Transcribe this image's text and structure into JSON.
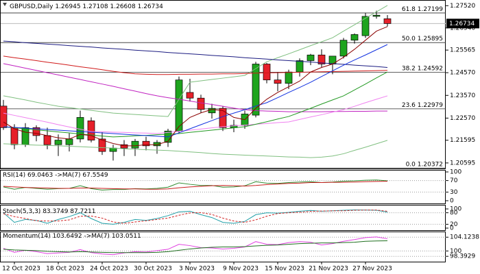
{
  "chart_data": [
    {
      "type": "candlestick",
      "title": "GBPUSD,Daily",
      "up_color": "#1ea41e",
      "down_color": "#e6202a",
      "categories": [
        null,
        "12 Oct 2023",
        null,
        null,
        null,
        "18 Oct 2023",
        null,
        null,
        null,
        "24 Oct 2023",
        null,
        null,
        null,
        "30 Oct 2023",
        null,
        null,
        null,
        "3 Nov 2023",
        null,
        null,
        null,
        "9 Nov 2023",
        null,
        null,
        null,
        "15 Nov 2023",
        null,
        null,
        null,
        "21 Nov 2023",
        null,
        null,
        null,
        "27 Nov 2023",
        null,
        null
      ],
      "open": [
        1.231,
        1.2215,
        1.214,
        1.2215,
        1.218,
        1.214,
        1.214,
        1.2165,
        1.2245,
        1.2165,
        1.211,
        1.214,
        1.2125,
        1.2155,
        1.2135,
        1.215,
        1.22,
        1.237,
        1.2345,
        1.228,
        1.23,
        1.2215,
        1.2225,
        1.227,
        1.2495,
        1.2425,
        1.241,
        1.246,
        1.251,
        1.2535,
        1.2495,
        1.253,
        1.26,
        1.262,
        1.2705,
        1.26945
      ],
      "high": [
        1.2337,
        1.223,
        1.2235,
        1.2225,
        1.2215,
        1.2185,
        1.219,
        1.229,
        1.226,
        1.2195,
        1.214,
        1.216,
        1.2165,
        1.2175,
        1.216,
        1.221,
        1.244,
        1.243,
        1.236,
        1.232,
        1.231,
        1.225,
        1.229,
        1.2505,
        1.25,
        1.246,
        1.247,
        1.252,
        1.254,
        1.256,
        1.253,
        1.261,
        1.263,
        1.272,
        1.273,
        1.27108
      ],
      "low": [
        1.2205,
        1.212,
        1.213,
        1.2155,
        1.212,
        1.209,
        1.211,
        1.215,
        1.215,
        1.2095,
        1.207,
        1.209,
        1.209,
        1.2115,
        1.21,
        1.213,
        1.219,
        1.233,
        1.228,
        1.2255,
        1.22,
        1.2195,
        1.221,
        1.226,
        1.241,
        1.2375,
        1.2385,
        1.244,
        1.249,
        1.248,
        1.245,
        1.252,
        1.2585,
        1.261,
        1.2695,
        1.26608
      ],
      "close": [
        1.2215,
        1.214,
        1.2215,
        1.218,
        1.214,
        1.216,
        1.2165,
        1.226,
        1.216,
        1.211,
        1.2125,
        1.2125,
        1.2155,
        1.2135,
        1.215,
        1.22,
        1.2425,
        1.2345,
        1.2295,
        1.23,
        1.2215,
        1.2225,
        1.2275,
        1.2495,
        1.2425,
        1.241,
        1.246,
        1.251,
        1.2535,
        1.2495,
        1.253,
        1.26,
        1.2625,
        1.2705,
        1.271,
        1.26734
      ],
      "ylim": [
        1.2035,
        1.2768
      ],
      "yticks": [
        {
          "value": 1.2752,
          "label": "1.27520"
        },
        {
          "value": 1.2654,
          "label": "1.26540"
        },
        {
          "value": 1.25565,
          "label": "1.25565"
        },
        {
          "value": 1.2457,
          "label": "1.24570"
        },
        {
          "value": 1.2357,
          "label": "1.23570"
        },
        {
          "value": 1.2257,
          "label": "1.22570"
        },
        {
          "value": 1.21595,
          "label": "1.21595"
        },
        {
          "value": 1.20595,
          "label": "1.20595"
        }
      ],
      "fib": [
        {
          "level": "61.8",
          "value": 1.27199
        },
        {
          "level": "50.0",
          "value": 1.25895
        },
        {
          "level": "38.2",
          "value": 1.24592
        },
        {
          "level": "23.6",
          "value": 1.22979
        },
        {
          "level": "0.0",
          "value": 1.20372
        }
      ],
      "series": [
        {
          "color": "#7fbf7f",
          "values": [
            1.2355,
            1.2346,
            1.2337,
            1.2327,
            1.2318,
            1.2309,
            1.2303,
            1.2297,
            1.2291,
            1.2285,
            1.2279,
            1.2276,
            1.2273,
            1.227,
            1.2267,
            1.2264,
            1.234,
            1.2415,
            1.2421,
            1.2427,
            1.2433,
            1.2439,
            1.2445,
            1.2475,
            1.2505,
            1.2523,
            1.254,
            1.2558,
            1.2576,
            1.2593,
            1.2611,
            1.264,
            1.2668,
            1.2697,
            1.2725,
            1.2753
          ]
        },
        {
          "color": "#7fbf7f",
          "values": [
            1.2144,
            1.2142,
            1.214,
            1.2138,
            1.2137,
            1.2135,
            1.2133,
            1.2131,
            1.2129,
            1.2127,
            1.2125,
            1.2122,
            1.212,
            1.2118,
            1.2116,
            1.2114,
            1.2111,
            1.2108,
            1.2105,
            1.2101,
            1.2098,
            1.2096,
            1.2094,
            1.2092,
            1.209,
            1.2088,
            1.2086,
            1.2085,
            1.2083,
            1.2085,
            1.209,
            1.21,
            1.2115,
            1.2129,
            1.2144,
            1.2159
          ]
        },
        {
          "color": "#1a1a80",
          "values": [
            1.2596,
            1.2593,
            1.2589,
            1.2586,
            1.2583,
            1.258,
            1.2576,
            1.2573,
            1.257,
            1.2566,
            1.2563,
            1.256,
            1.2556,
            1.2553,
            1.255,
            1.2546,
            1.2543,
            1.254,
            1.2537,
            1.2533,
            1.253,
            1.2527,
            1.2523,
            1.252,
            1.2517,
            1.2513,
            1.251,
            1.2507,
            1.2504,
            1.25,
            1.2497,
            1.2494,
            1.249,
            1.2487,
            1.2484,
            1.248
          ]
        },
        {
          "color": "#d01818",
          "values": [
            1.253,
            1.2523,
            1.2517,
            1.251,
            1.2503,
            1.2497,
            1.249,
            1.2483,
            1.2477,
            1.247,
            1.2463,
            1.2457,
            1.2452,
            1.245,
            1.2449,
            1.2449,
            1.245,
            1.245,
            1.2451,
            1.2451,
            1.2452,
            1.2452,
            1.2453,
            1.2455,
            1.2456,
            1.2457,
            1.2458,
            1.2459,
            1.246,
            1.2461,
            1.2462,
            1.2463,
            1.2464,
            1.2465,
            1.2466,
            1.2467
          ]
        },
        {
          "color": "#c020c0",
          "values": [
            1.2497,
            1.2487,
            1.2477,
            1.2467,
            1.2457,
            1.2447,
            1.2437,
            1.2427,
            1.2417,
            1.2407,
            1.2397,
            1.2386,
            1.2376,
            1.2365,
            1.2355,
            1.2347,
            1.234,
            1.2332,
            1.2324,
            1.2317,
            1.2309,
            1.2301,
            1.2294,
            1.229,
            1.2288,
            1.2287,
            1.2285,
            1.2285,
            1.2285,
            1.2285,
            1.2286,
            1.2286,
            1.2287,
            1.2287,
            1.2288,
            1.2288
          ]
        },
        {
          "color": "#f080f0",
          "values": [
            1.2279,
            1.2269,
            1.2259,
            1.2249,
            1.2239,
            1.2228,
            1.2218,
            1.2208,
            1.2198,
            1.2197,
            1.2195,
            1.2194,
            1.2192,
            1.2191,
            1.2189,
            1.2194,
            1.2199,
            1.2204,
            1.2209,
            1.2214,
            1.2219,
            1.2223,
            1.2226,
            1.223,
            1.2233,
            1.2237,
            1.224,
            1.2251,
            1.2262,
            1.2272,
            1.2283,
            1.2294,
            1.2309,
            1.2325,
            1.234,
            1.2355
          ]
        },
        {
          "color": "#229922",
          "values": [
            1.2219,
            1.2214,
            1.221,
            1.2205,
            1.2201,
            1.2196,
            1.2192,
            1.2187,
            1.2183,
            1.2178,
            1.2174,
            1.2176,
            1.2179,
            1.2181,
            1.2184,
            1.2186,
            1.2189,
            1.2194,
            1.2199,
            1.2204,
            1.2209,
            1.2214,
            1.2219,
            1.223,
            1.2241,
            1.2253,
            1.2264,
            1.2282,
            1.23,
            1.2319,
            1.2337,
            1.2355,
            1.2381,
            1.2407,
            1.2434,
            1.246
          ]
        },
        {
          "color": "#1030e0",
          "values": [
            1.2219,
            1.2216,
            1.2213,
            1.221,
            1.2207,
            1.2204,
            1.2201,
            1.2198,
            1.2195,
            1.2192,
            1.2189,
            1.2186,
            1.2183,
            1.218,
            1.2177,
            1.2174,
            1.2192,
            1.221,
            1.2228,
            1.2246,
            1.2264,
            1.2279,
            1.2294,
            1.231,
            1.2325,
            1.2347,
            1.237,
            1.2392,
            1.2415,
            1.244,
            1.2465,
            1.249,
            1.2513,
            1.2535,
            1.2558,
            1.2581
          ]
        },
        {
          "color": "#8b0000",
          "values": [
            1.224,
            1.221,
            1.2195,
            1.219,
            1.218,
            1.217,
            1.2165,
            1.2185,
            1.218,
            1.216,
            1.2145,
            1.2135,
            1.2135,
            1.214,
            1.214,
            1.2155,
            1.222,
            1.226,
            1.228,
            1.2295,
            1.229,
            1.226,
            1.225,
            1.23,
            1.234,
            1.237,
            1.2395,
            1.242,
            1.246,
            1.248,
            1.2495,
            1.2525,
            1.256,
            1.26,
            1.264,
            1.266
          ]
        }
      ]
    },
    {
      "type": "line",
      "title": "RSI(14)",
      "ma_label": "->MA(7)",
      "ylim": [
        0,
        100
      ],
      "yticks": [
        100,
        70,
        30,
        0
      ],
      "series": [
        {
          "color": "#2e8b2e",
          "values": [
            48,
            40,
            46,
            43,
            40,
            42,
            43,
            52,
            42,
            37,
            39,
            39,
            42,
            41,
            43,
            47,
            62,
            57,
            53,
            53,
            47,
            48,
            52,
            66,
            61,
            60,
            63,
            65,
            66,
            63,
            65,
            68,
            69,
            71,
            72,
            69.0463
          ]
        },
        {
          "color": "#c81e1e",
          "values": [
            50,
            48,
            46,
            45,
            44,
            43,
            43,
            44,
            44,
            43,
            42,
            41,
            41,
            40,
            40,
            41,
            45,
            48,
            50,
            52,
            53,
            52,
            51,
            53,
            56,
            58,
            60,
            61,
            63,
            63,
            64,
            64,
            65,
            66,
            67,
            67.5549
          ]
        }
      ]
    },
    {
      "type": "line",
      "title": "Stoch(5,3,3)",
      "ylim": [
        0,
        100
      ],
      "yticks": [
        100,
        80,
        20,
        0
      ],
      "series": [
        {
          "color": "#20a0a8",
          "values": [
            80,
            30,
            45,
            40,
            25,
            45,
            60,
            80,
            50,
            25,
            20,
            30,
            45,
            40,
            50,
            65,
            85,
            88,
            70,
            55,
            30,
            25,
            35,
            70,
            80,
            78,
            82,
            88,
            92,
            88,
            90,
            93,
            95,
            94,
            93,
            83.3749
          ]
        },
        {
          "color": "#d02020",
          "dashed": true,
          "values": [
            75,
            60,
            50,
            38,
            37,
            37,
            43,
            62,
            63,
            52,
            32,
            25,
            32,
            38,
            45,
            52,
            67,
            79,
            81,
            71,
            52,
            37,
            30,
            43,
            62,
            76,
            80,
            83,
            87,
            89,
            90,
            90,
            93,
            94,
            94,
            87.7211
          ]
        }
      ]
    },
    {
      "type": "line",
      "title": "Momentum(14)",
      "ma_label": "->MA(7)",
      "ylim": [
        97,
        105.2
      ],
      "yticks": [
        104.1238,
        100,
        98.3929
      ],
      "series": [
        {
          "color": "#e040e0",
          "values": [
            100.8,
            99.6,
            100.2,
            99.8,
            99.2,
            99.4,
            99.6,
            100.4,
            99.5,
            99.1,
            98.9,
            99.4,
            99.8,
            99.7,
            100.1,
            100.5,
            102.0,
            101.6,
            101.0,
            100.9,
            100.6,
            100.8,
            101.2,
            102.8,
            102.0,
            101.9,
            102.5,
            102.8,
            102.6,
            101.8,
            102.2,
            102.9,
            103.4,
            104.0,
            104.2,
            103.6492
          ]
        },
        {
          "color": "#1e6e1e",
          "values": [
            100.5,
            100.3,
            100.2,
            100.1,
            99.9,
            99.8,
            99.7,
            99.8,
            99.7,
            99.6,
            99.5,
            99.5,
            99.5,
            99.5,
            99.6,
            99.8,
            100.2,
            100.6,
            100.9,
            101.1,
            101.2,
            101.2,
            101.3,
            101.5,
            101.7,
            101.8,
            102.0,
            102.2,
            102.3,
            102.4,
            102.4,
            102.5,
            102.6,
            102.9,
            103.0,
            103.0511
          ]
        }
      ]
    }
  ]
}
